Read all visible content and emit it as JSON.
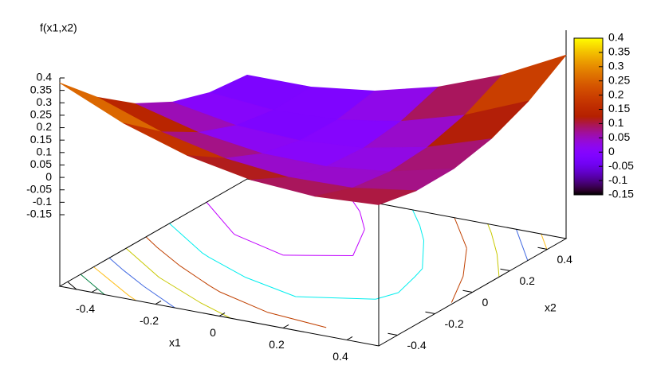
{
  "chart_data": {
    "type": "surface",
    "zlabel": "f(x1,x2)",
    "xlabel": "x1",
    "ylabel": "x2",
    "x": [
      -0.5,
      -0.3,
      -0.1,
      0.1,
      0.3,
      0.5
    ],
    "y": [
      -0.5,
      -0.3,
      -0.1,
      0.1,
      0.3,
      0.5
    ],
    "z": [
      [
        0.38,
        0.236,
        0.124,
        0.044,
        -0.004,
        -0.02
      ],
      [
        0.266,
        0.145,
        0.056,
        -0.002,
        -0.027,
        -0.02
      ],
      [
        0.184,
        0.086,
        0.019,
        -0.015,
        -0.018,
        0.012
      ],
      [
        0.134,
        0.058,
        0.015,
        0.003,
        0.024,
        0.076
      ],
      [
        0.116,
        0.063,
        0.042,
        0.054,
        0.097,
        0.172
      ],
      [
        0.13,
        0.1,
        0.102,
        0.136,
        0.202,
        0.3
      ]
    ],
    "xlim": [
      -0.5,
      0.5
    ],
    "ylim": [
      -0.5,
      0.5
    ],
    "zlim": [
      -0.15,
      0.4
    ],
    "xticks": [
      -0.4,
      -0.2,
      0,
      0.2,
      0.4
    ],
    "yticks": [
      -0.4,
      -0.2,
      0,
      0.2,
      0.4
    ],
    "zticks": [
      -0.15,
      -0.1,
      -0.05,
      0,
      0.05,
      0.1,
      0.15,
      0.2,
      0.25,
      0.3,
      0.35,
      0.4
    ],
    "colorbar": {
      "lim": [
        -0.15,
        0.4
      ],
      "ticks": [
        -0.15,
        -0.1,
        -0.05,
        0,
        0.05,
        0.1,
        0.15,
        0.2,
        0.25,
        0.3,
        0.35,
        0.4
      ]
    },
    "contours": true
  }
}
